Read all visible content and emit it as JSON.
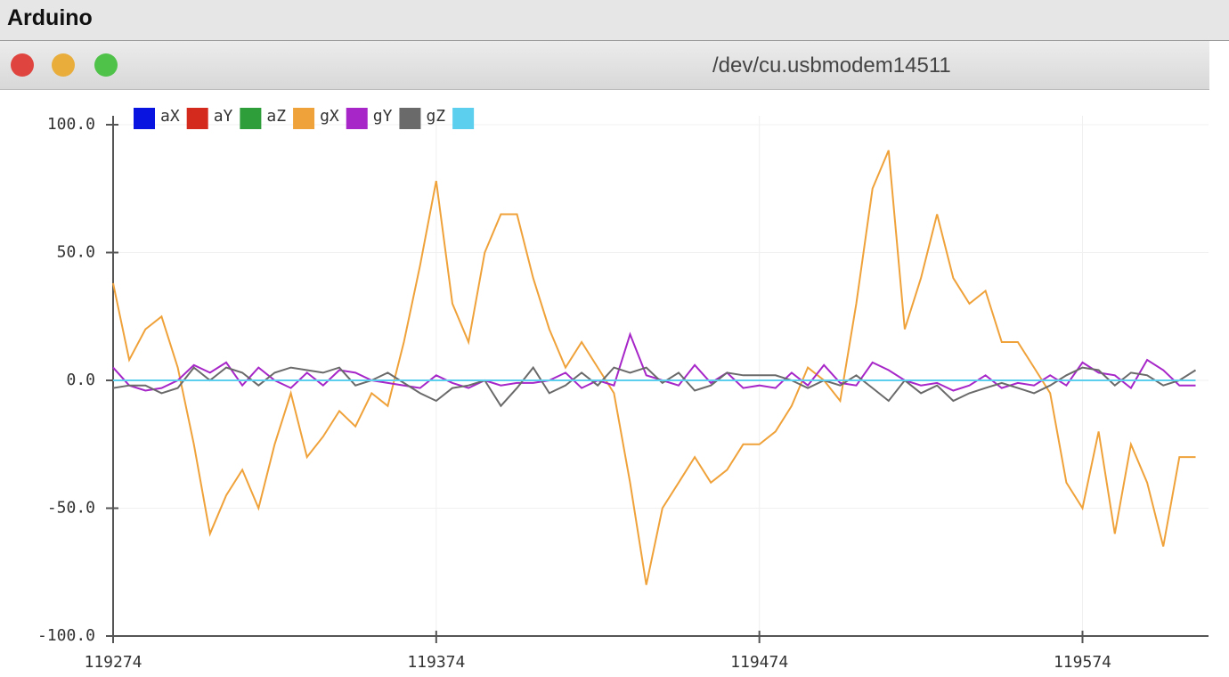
{
  "window": {
    "app_title": "Arduino",
    "port": "/dev/cu.usbmodem14511"
  },
  "chart_data": {
    "type": "line",
    "x": [
      119274,
      119279,
      119284,
      119289,
      119294,
      119299,
      119304,
      119309,
      119314,
      119319,
      119324,
      119329,
      119334,
      119339,
      119344,
      119349,
      119354,
      119359,
      119364,
      119369,
      119374,
      119379,
      119384,
      119389,
      119394,
      119399,
      119404,
      119409,
      119414,
      119419,
      119424,
      119429,
      119434,
      119439,
      119444,
      119449,
      119454,
      119459,
      119464,
      119469,
      119474,
      119479,
      119484,
      119489,
      119494,
      119499,
      119504,
      119509,
      119514,
      119519,
      119524,
      119529,
      119534,
      119539,
      119544,
      119549,
      119554,
      119559,
      119564,
      119569,
      119574,
      119579,
      119584,
      119589,
      119594,
      119599,
      119604,
      119609
    ],
    "series": [
      {
        "name": "aX",
        "color": "#0a14e0",
        "values": [
          0,
          0,
          0,
          0,
          0,
          0,
          0,
          0,
          0,
          0,
          0,
          0,
          0,
          0,
          0,
          0,
          0,
          0,
          0,
          0,
          0,
          0,
          0,
          0,
          0,
          0,
          0,
          0,
          0,
          0,
          0,
          0,
          0,
          0,
          0,
          0,
          0,
          0,
          0,
          0,
          0,
          0,
          0,
          0,
          0,
          0,
          0,
          0,
          0,
          0,
          0,
          0,
          0,
          0,
          0,
          0,
          0,
          0,
          0,
          0,
          0,
          0,
          0,
          0,
          0,
          0,
          0,
          0
        ]
      },
      {
        "name": "aY",
        "color": "#d42a1e",
        "values": [
          0,
          0,
          0,
          0,
          0,
          0,
          0,
          0,
          0,
          0,
          0,
          0,
          0,
          0,
          0,
          0,
          0,
          0,
          0,
          0,
          0,
          0,
          0,
          0,
          0,
          0,
          0,
          0,
          0,
          0,
          0,
          0,
          0,
          0,
          0,
          0,
          0,
          0,
          0,
          0,
          0,
          0,
          0,
          0,
          0,
          0,
          0,
          0,
          0,
          0,
          0,
          0,
          0,
          0,
          0,
          0,
          0,
          0,
          0,
          0,
          0,
          0,
          0,
          0,
          0,
          0,
          0,
          0
        ]
      },
      {
        "name": "aZ",
        "color": "#2e9e3a",
        "values": [
          0,
          0,
          0,
          0,
          0,
          0,
          0,
          0,
          0,
          0,
          0,
          0,
          0,
          0,
          0,
          0,
          0,
          0,
          0,
          0,
          0,
          0,
          0,
          0,
          0,
          0,
          0,
          0,
          0,
          0,
          0,
          0,
          0,
          0,
          0,
          0,
          0,
          0,
          0,
          0,
          0,
          0,
          0,
          0,
          0,
          0,
          0,
          0,
          0,
          0,
          0,
          0,
          0,
          0,
          0,
          0,
          0,
          0,
          0,
          0,
          0,
          0,
          0,
          0,
          0,
          0,
          0,
          0
        ]
      },
      {
        "name": "gX",
        "color": "#f0a23a",
        "values": [
          38,
          8,
          20,
          25,
          5,
          -25,
          -60,
          -45,
          -35,
          -50,
          -25,
          -5,
          -30,
          -22,
          -12,
          -18,
          -5,
          -10,
          15,
          45,
          78,
          30,
          15,
          50,
          65,
          65,
          40,
          20,
          5,
          15,
          5,
          -5,
          -40,
          -80,
          -50,
          -40,
          -30,
          -40,
          -35,
          -25,
          -25,
          -20,
          -10,
          5,
          0,
          -8,
          30,
          75,
          90,
          20,
          40,
          65,
          40,
          30,
          35,
          15,
          15,
          5,
          -5,
          -40,
          -50,
          -20,
          -60,
          -25,
          -40,
          -65,
          -30,
          -30
        ]
      },
      {
        "name": "gY",
        "color": "#a626c8",
        "values": [
          5,
          -2,
          -4,
          -3,
          0,
          6,
          3,
          7,
          -2,
          5,
          0,
          -3,
          3,
          -2,
          4,
          3,
          0,
          -1,
          -2,
          -3,
          2,
          -1,
          -3,
          0,
          -2,
          -1,
          -1,
          0,
          3,
          -3,
          0,
          -2,
          18,
          2,
          0,
          -2,
          6,
          -1,
          3,
          -3,
          -2,
          -3,
          3,
          -2,
          6,
          -1,
          -2,
          7,
          4,
          0,
          -2,
          -1,
          -4,
          -2,
          2,
          -3,
          -1,
          -2,
          2,
          -2,
          7,
          3,
          2,
          -3,
          8,
          4,
          -2,
          -2
        ]
      },
      {
        "name": "gZ",
        "color": "#6a6a6a",
        "values": [
          -3,
          -2,
          -2,
          -5,
          -3,
          5,
          0,
          5,
          3,
          -2,
          3,
          5,
          4,
          3,
          5,
          -2,
          0,
          3,
          -1,
          -5,
          -8,
          -3,
          -2,
          0,
          -10,
          -3,
          5,
          -5,
          -2,
          3,
          -2,
          5,
          3,
          5,
          -1,
          3,
          -4,
          -2,
          3,
          2,
          2,
          2,
          0,
          -3,
          0,
          -2,
          2,
          -3,
          -8,
          0,
          -5,
          -2,
          -8,
          -5,
          -3,
          -1,
          -3,
          -5,
          -2,
          2,
          5,
          4,
          -2,
          3,
          2,
          -2,
          0,
          4
        ]
      },
      {
        "name": null,
        "color": "#5ccfee",
        "values": [
          0,
          0,
          0,
          0,
          0,
          0,
          0,
          0,
          0,
          0,
          0,
          0,
          0,
          0,
          0,
          0,
          0,
          0,
          0,
          0,
          0,
          0,
          0,
          0,
          0,
          0,
          0,
          0,
          0,
          0,
          0,
          0,
          0,
          0,
          0,
          0,
          0,
          0,
          0,
          0,
          0,
          0,
          0,
          0,
          0,
          0,
          0,
          0,
          0,
          0,
          0,
          0,
          0,
          0,
          0,
          0,
          0,
          0,
          0,
          0,
          0,
          0,
          0,
          0,
          0,
          0,
          0,
          0
        ]
      }
    ],
    "xlim": [
      119274,
      119613
    ],
    "xticks": [
      119274,
      119374,
      119474,
      119574
    ],
    "ylim": [
      -100,
      100
    ],
    "yticks": [
      {
        "value": -100,
        "label": "-100.0"
      },
      {
        "value": -50,
        "label": "-50.0"
      },
      {
        "value": 0,
        "label": "0.0"
      },
      {
        "value": 50,
        "label": "50.0"
      },
      {
        "value": 100,
        "label": "100.0"
      }
    ],
    "grid": true
  }
}
